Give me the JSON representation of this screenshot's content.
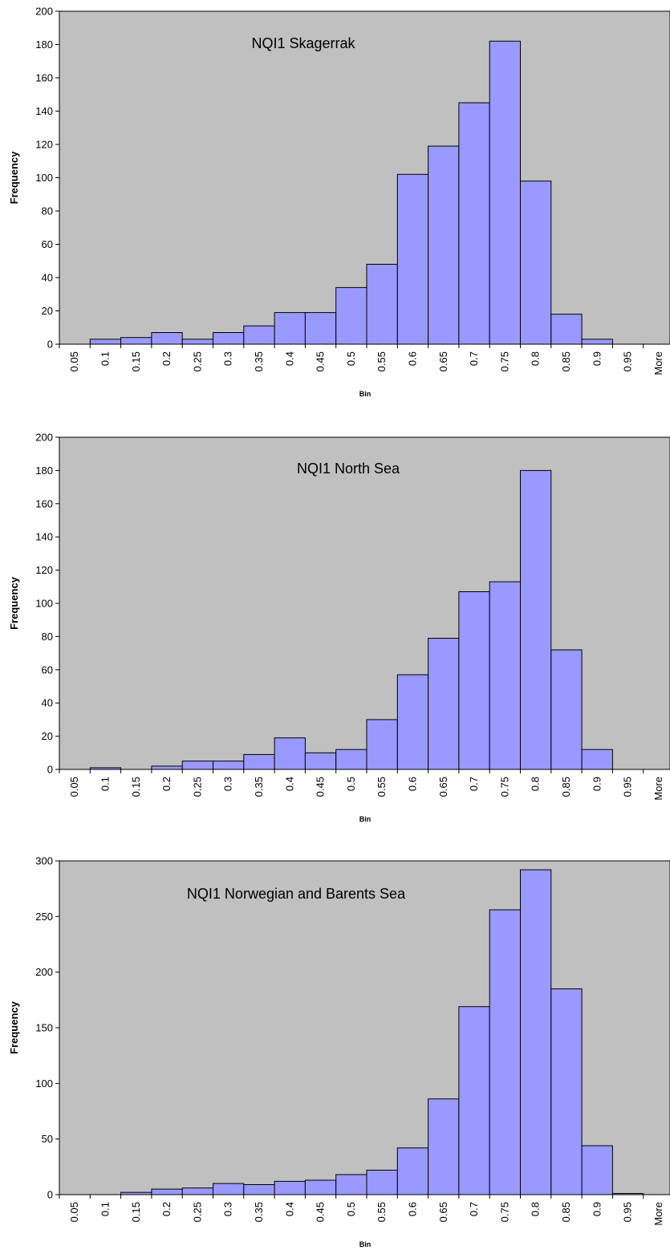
{
  "chart_data": [
    {
      "type": "bar",
      "title": "NQI1 Skagerrak",
      "xlabel": "Bin",
      "ylabel": "Frequency",
      "ylim": [
        0,
        200
      ],
      "yticks": [
        0,
        20,
        40,
        60,
        80,
        100,
        120,
        140,
        160,
        180,
        200
      ],
      "categories": [
        "0.05",
        "0.1",
        "0.15",
        "0.2",
        "0.25",
        "0.3",
        "0.35",
        "0.4",
        "0.45",
        "0.5",
        "0.55",
        "0.6",
        "0.65",
        "0.7",
        "0.75",
        "0.8",
        "0.85",
        "0.9",
        "0.95",
        "More"
      ],
      "values": [
        0,
        3,
        4,
        7,
        3,
        7,
        11,
        19,
        19,
        34,
        48,
        102,
        119,
        145,
        182,
        98,
        18,
        3,
        0,
        0
      ],
      "grid": false,
      "legend": "none"
    },
    {
      "type": "bar",
      "title": "NQI1 North Sea",
      "xlabel": "Bin",
      "ylabel": "Frequency",
      "ylim": [
        0,
        200
      ],
      "yticks": [
        0,
        20,
        40,
        60,
        80,
        100,
        120,
        140,
        160,
        180,
        200
      ],
      "categories": [
        "0.05",
        "0.1",
        "0.15",
        "0.2",
        "0.25",
        "0.3",
        "0.35",
        "0.4",
        "0.45",
        "0.5",
        "0.55",
        "0.6",
        "0.65",
        "0.7",
        "0.75",
        "0.8",
        "0.85",
        "0.9",
        "0.95",
        "More"
      ],
      "values": [
        0,
        1,
        0,
        2,
        5,
        5,
        9,
        19,
        10,
        12,
        30,
        57,
        79,
        107,
        113,
        180,
        72,
        12,
        0,
        0
      ],
      "grid": false,
      "legend": "none"
    },
    {
      "type": "bar",
      "title": "NQI1 Norwegian and Barents Sea",
      "xlabel": "Bin",
      "ylabel": "Frequency",
      "ylim": [
        0,
        300
      ],
      "yticks": [
        0,
        50,
        100,
        150,
        200,
        250,
        300
      ],
      "categories": [
        "0.05",
        "0.1",
        "0.15",
        "0.2",
        "0.25",
        "0.3",
        "0.35",
        "0.4",
        "0.45",
        "0.5",
        "0.55",
        "0.6",
        "0.65",
        "0.7",
        "0.75",
        "0.8",
        "0.85",
        "0.9",
        "0.95",
        "More"
      ],
      "values": [
        0,
        0,
        2,
        5,
        6,
        10,
        9,
        12,
        13,
        18,
        22,
        42,
        86,
        169,
        256,
        292,
        185,
        44,
        1,
        0
      ],
      "grid": false,
      "legend": "none"
    }
  ],
  "colors": {
    "plot_background": "#c0c0c0",
    "bar_fill": "#9999ff",
    "bar_stroke": "#000000",
    "axis": "#000000",
    "page_background": "#ffffff"
  }
}
